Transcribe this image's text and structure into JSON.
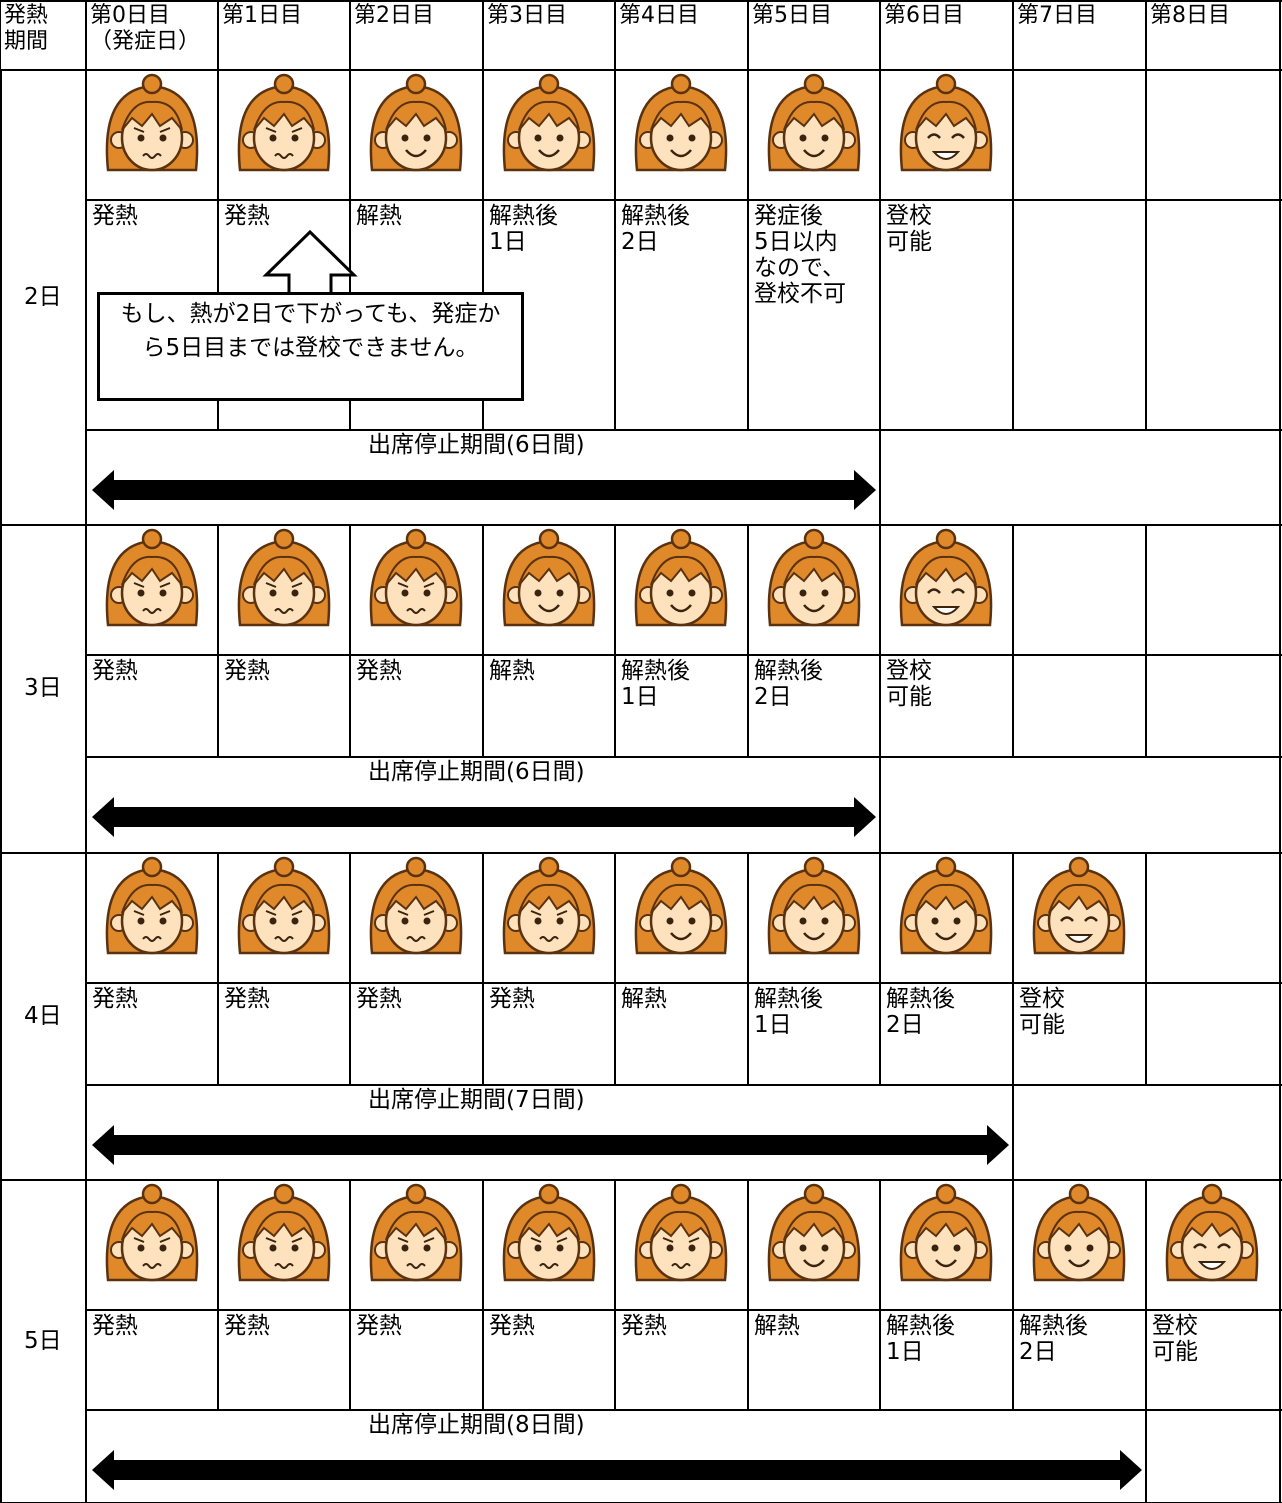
{
  "header": [
    "発熱\n期間",
    "第0日目\n（発症日）",
    "第1日目",
    "第2日目",
    "第3日目",
    "第4日目",
    "第5日目",
    "第6日目",
    "第7日目",
    "第8日目"
  ],
  "sections": [
    {
      "label": "2日",
      "days": [
        "発熱",
        "発熱",
        "解熱",
        "解熱後\n1日",
        "解熱後\n2日",
        "発症後\n5日以内\nなので、\n登校不可",
        "登校\n可能"
      ],
      "period": "出席停止期間(6日間)",
      "note": "もし、熱が2日で下がっても、発症から5日目までは登校できません。"
    },
    {
      "label": "3日",
      "days": [
        "発熱",
        "発熱",
        "発熱",
        "解熱",
        "解熱後\n1日",
        "解熱後\n2日",
        "登校\n可能"
      ],
      "period": "出席停止期間(6日間)"
    },
    {
      "label": "4日",
      "days": [
        "発熱",
        "発熱",
        "発熱",
        "発熱",
        "解熱",
        "解熱後\n1日",
        "解熱後\n2日",
        "登校\n可能"
      ],
      "period": "出席停止期間(7日間)"
    },
    {
      "label": "5日",
      "days": [
        "発熱",
        "発熱",
        "発熱",
        "発熱",
        "発熱",
        "解熱",
        "解熱後\n1日",
        "解熱後\n2日",
        "登校\n可能"
      ],
      "period": "出席停止期間(8日間)"
    }
  ]
}
